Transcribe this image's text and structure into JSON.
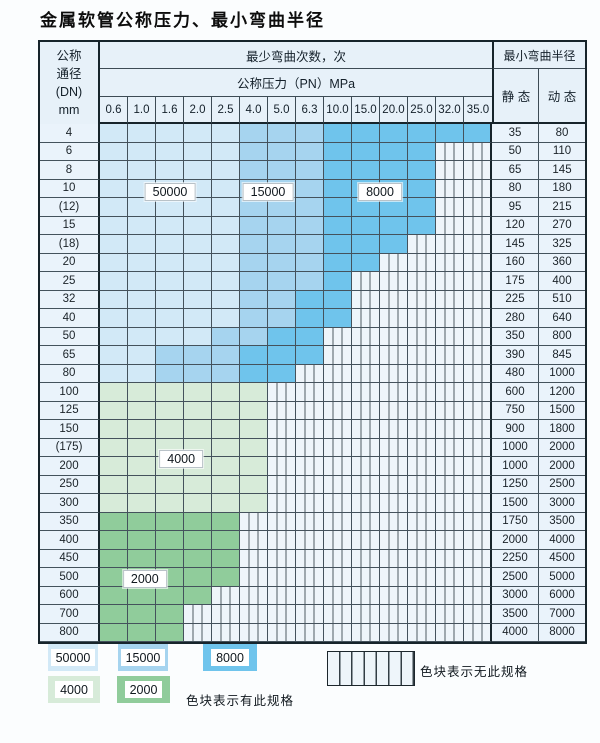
{
  "title": "金属软管公称压力、最小弯曲半径",
  "table": {
    "dn_header": [
      "公称",
      "通径",
      "(DN)",
      "mm"
    ],
    "bend_header": "最少弯曲次数，次",
    "pressure_header": "公称压力（PN）MPa",
    "pressures": [
      "0.6",
      "1.0",
      "1.6",
      "2.0",
      "2.5",
      "4.0",
      "5.0",
      "6.3",
      "10.0",
      "15.0",
      "20.0",
      "25.0",
      "32.0",
      "35.0"
    ],
    "radius_header": "最小弯曲半径",
    "static_header": "静 态",
    "dynamic_header": "动 态",
    "rows": [
      {
        "dn": "4",
        "cells": "LLLLLMMMDDDDDD",
        "static": "35",
        "dynamic": "80"
      },
      {
        "dn": "6",
        "cells": "LLLLLMMMDDDDxx",
        "static": "50",
        "dynamic": "110"
      },
      {
        "dn": "8",
        "cells": "LLLLLMMMDDDDxx",
        "static": "65",
        "dynamic": "145"
      },
      {
        "dn": "10",
        "cells": "LLLLLMMMDDDDxx",
        "static": "80",
        "dynamic": "180"
      },
      {
        "dn": "(12)",
        "cells": "LLLLLMMMDDDDxx",
        "static": "95",
        "dynamic": "215"
      },
      {
        "dn": "15",
        "cells": "LLLLLMMMDDDDxx",
        "static": "120",
        "dynamic": "270"
      },
      {
        "dn": "(18)",
        "cells": "LLLLLMMMDDDxxx",
        "static": "145",
        "dynamic": "325"
      },
      {
        "dn": "20",
        "cells": "LLLLLMMMDDxxxx",
        "static": "160",
        "dynamic": "360"
      },
      {
        "dn": "25",
        "cells": "LLLLLMMMDxxxxx",
        "static": "175",
        "dynamic": "400"
      },
      {
        "dn": "32",
        "cells": "LLLLLMMDDxxxxx",
        "static": "225",
        "dynamic": "510"
      },
      {
        "dn": "40",
        "cells": "LLLLLMMDDxxxxx",
        "static": "280",
        "dynamic": "640"
      },
      {
        "dn": "50",
        "cells": "LLLLMMDDxxxxxx",
        "static": "350",
        "dynamic": "800"
      },
      {
        "dn": "65",
        "cells": "LLMMMDDDxxxxxx",
        "static": "390",
        "dynamic": "845"
      },
      {
        "dn": "80",
        "cells": "LLMMMDDxxxxxxx",
        "static": "480",
        "dynamic": "1000"
      },
      {
        "dn": "100",
        "cells": "ggggggxxxxxxxx",
        "static": "600",
        "dynamic": "1200"
      },
      {
        "dn": "125",
        "cells": "ggggggxxxxxxxx",
        "static": "750",
        "dynamic": "1500"
      },
      {
        "dn": "150",
        "cells": "ggggggxxxxxxxx",
        "static": "900",
        "dynamic": "1800"
      },
      {
        "dn": "(175)",
        "cells": "ggggggxxxxxxxx",
        "static": "1000",
        "dynamic": "2000"
      },
      {
        "dn": "200",
        "cells": "ggggggxxxxxxxx",
        "static": "1000",
        "dynamic": "2000"
      },
      {
        "dn": "250",
        "cells": "ggggggxxxxxxxx",
        "static": "1250",
        "dynamic": "2500"
      },
      {
        "dn": "300",
        "cells": "ggggggxxxxxxxx",
        "static": "1500",
        "dynamic": "3000"
      },
      {
        "dn": "350",
        "cells": "GGGGGxxxxxxxxx",
        "static": "1750",
        "dynamic": "3500"
      },
      {
        "dn": "400",
        "cells": "GGGGGxxxxxxxxx",
        "static": "2000",
        "dynamic": "4000"
      },
      {
        "dn": "450",
        "cells": "GGGGGxxxxxxxxx",
        "static": "2250",
        "dynamic": "4500"
      },
      {
        "dn": "500",
        "cells": "GGGGGxxxxxxxxx",
        "static": "2500",
        "dynamic": "5000"
      },
      {
        "dn": "600",
        "cells": "GGGGxxxxxxxxxx",
        "static": "3000",
        "dynamic": "6000"
      },
      {
        "dn": "700",
        "cells": "GGGxxxxxxxxxxx",
        "static": "3500",
        "dynamic": "7000"
      },
      {
        "dn": "800",
        "cells": "GGGxxxxxxxxxxx",
        "static": "4000",
        "dynamic": "8000"
      }
    ]
  },
  "cycle_labels": [
    {
      "text": "50000",
      "col": 2.5,
      "row": 3.7
    },
    {
      "text": "15000",
      "col": 6.0,
      "row": 3.7
    },
    {
      "text": "8000",
      "col": 10.0,
      "row": 3.7
    },
    {
      "text": "4000",
      "col": 2.9,
      "row": 18.1
    },
    {
      "text": "2000",
      "col": 1.6,
      "row": 24.6
    }
  ],
  "legend": {
    "items": [
      {
        "label": "50000",
        "key": "c50000"
      },
      {
        "label": "15000",
        "key": "c15000"
      },
      {
        "label": "8000",
        "key": "c8000"
      },
      {
        "label": "4000",
        "key": "c4000"
      },
      {
        "label": "2000",
        "key": "c2000"
      }
    ],
    "has_text": "色块表示有此规格",
    "none_text": "色块表示无此规格"
  },
  "colors": {
    "c50000": "#d2e9f7",
    "c15000": "#a6d4ef",
    "c8000": "#6fc4ec",
    "c4000": "#d7ebd9",
    "c2000": "#90cc9b"
  }
}
